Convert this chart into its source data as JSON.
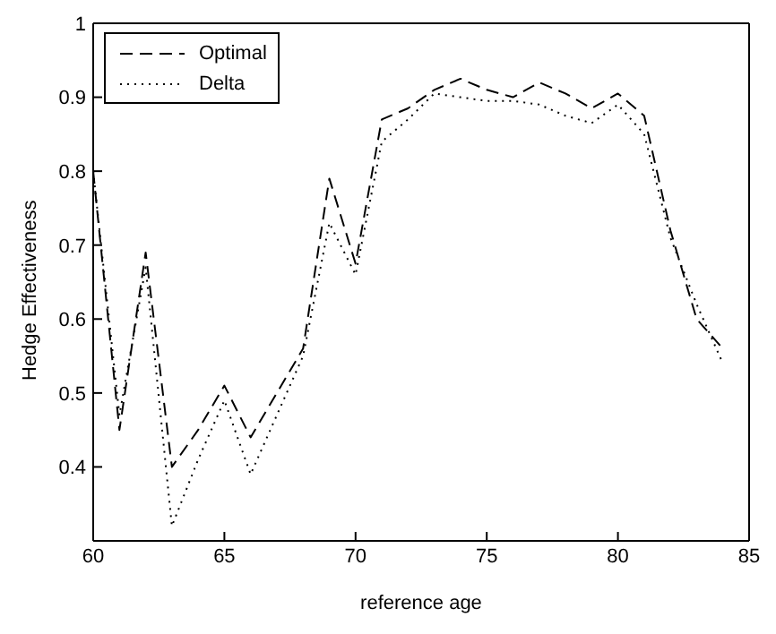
{
  "chart_data": {
    "type": "line",
    "xlabel": "reference age",
    "ylabel": "Hedge Effectiveness",
    "x": [
      60,
      61,
      62,
      63,
      64,
      65,
      66,
      67,
      68,
      69,
      70,
      71,
      72,
      73,
      74,
      75,
      76,
      77,
      78,
      79,
      80,
      81,
      82,
      83,
      84
    ],
    "series": [
      {
        "name": "Optimal",
        "color": "#000000",
        "line_style": "dashed",
        "values": [
          0.8,
          0.45,
          0.69,
          0.4,
          0.45,
          0.51,
          0.44,
          0.5,
          0.56,
          0.79,
          0.675,
          0.87,
          0.885,
          0.91,
          0.925,
          0.91,
          0.9,
          0.92,
          0.905,
          0.885,
          0.905,
          0.875,
          0.72,
          0.6,
          0.56
        ]
      },
      {
        "name": "Delta",
        "color": "#000000",
        "line_style": "dotted",
        "values": [
          0.8,
          0.47,
          0.67,
          0.32,
          0.41,
          0.49,
          0.39,
          0.47,
          0.55,
          0.73,
          0.66,
          0.84,
          0.87,
          0.905,
          0.9,
          0.895,
          0.895,
          0.89,
          0.875,
          0.865,
          0.89,
          0.85,
          0.71,
          0.62,
          0.54
        ]
      }
    ],
    "xlim": [
      60,
      85
    ],
    "xticks": [
      60,
      65,
      70,
      75,
      80,
      85
    ],
    "ylim": [
      0.3,
      1
    ],
    "yticks": [
      {
        "value": 0.3,
        "label": null
      },
      0.4,
      0.5,
      0.6,
      0.7,
      0.8,
      0.9,
      1
    ],
    "legend": "top left",
    "marker": "none",
    "grid": false
  }
}
